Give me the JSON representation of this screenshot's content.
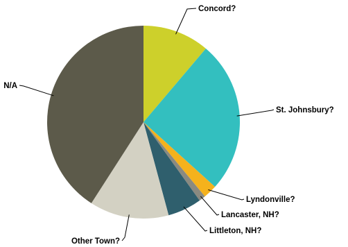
{
  "chart_data": {
    "type": "pie",
    "title": "",
    "slices": [
      {
        "label": "Concord?",
        "value": 11.2,
        "color": "#cdd02b"
      },
      {
        "label": "St. Johnsbury?",
        "value": 25.5,
        "color": "#33bfbf"
      },
      {
        "label": "Lyndonville?",
        "value": 2.3,
        "color": "#f5b21c"
      },
      {
        "label": "Lancaster, NH?",
        "value": 1.1,
        "color": "#8a8a80"
      },
      {
        "label": "Littleton, NH?",
        "value": 5.7,
        "color": "#2f5f6d"
      },
      {
        "label": "Other Town?",
        "value": 13.3,
        "color": "#d3d1c3"
      },
      {
        "label": "N/A",
        "value": 40.9,
        "color": "#5c5a4a"
      }
    ],
    "legend": "none",
    "labels": "outside-with-leader-lines"
  }
}
